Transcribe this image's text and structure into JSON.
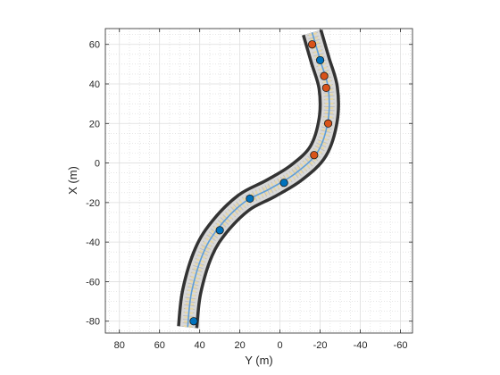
{
  "chart_data": {
    "type": "scatter",
    "title": "",
    "xlabel": "Y (m)",
    "ylabel": "X (m)",
    "xlim": [
      87,
      -66
    ],
    "ylim": [
      -86,
      68
    ],
    "x_reversed": true,
    "xticks": [
      80,
      60,
      40,
      20,
      0,
      -20,
      -40,
      -60
    ],
    "yticks": [
      60,
      40,
      20,
      0,
      -20,
      -40,
      -60,
      -80
    ],
    "grid": true,
    "minor_grid": true,
    "road": {
      "centerline": [
        {
          "y": 46,
          "x": -83
        },
        {
          "y": 44,
          "x": -65
        },
        {
          "y": 38,
          "x": -45
        },
        {
          "y": 30,
          "x": -32
        },
        {
          "y": 18,
          "x": -20
        },
        {
          "y": 5,
          "x": -13
        },
        {
          "y": -8,
          "x": -5
        },
        {
          "y": -19,
          "x": 6
        },
        {
          "y": -24,
          "x": 22
        },
        {
          "y": -24,
          "x": 38
        },
        {
          "y": -20,
          "x": 52
        },
        {
          "y": -16,
          "x": 66
        }
      ],
      "colors": {
        "edge": "#333333",
        "surface": "#d9d9d9",
        "lane_marking": "#e8d7a2",
        "center_path": "#5f9fd9"
      }
    },
    "series": [
      {
        "color": "#0072bd",
        "x": [
          43,
          30,
          15,
          -2
        ],
        "y": [
          -80,
          -34,
          -18,
          -10
        ]
      },
      {
        "color": "#d95319",
        "x": [
          -17,
          -24,
          -23,
          -22,
          -16
        ],
        "y": [
          4,
          20,
          38,
          44,
          60
        ]
      },
      {
        "color": "#0072bd",
        "x": [
          -20
        ],
        "y": [
          52
        ]
      }
    ]
  }
}
